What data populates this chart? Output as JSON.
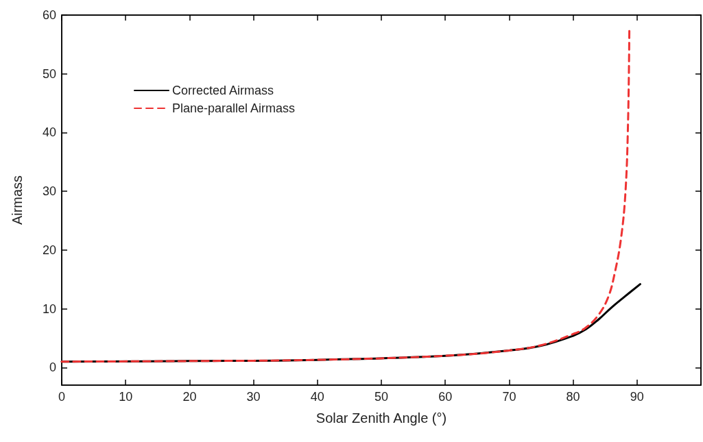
{
  "chart_data": {
    "type": "line",
    "xlabel": "Solar Zenith Angle (°)",
    "ylabel": "Airmass",
    "xlim": [
      0,
      100
    ],
    "xticks": [
      0,
      10,
      20,
      30,
      40,
      50,
      60,
      70,
      80,
      90
    ],
    "ylim": [
      -3,
      60
    ],
    "yticks": [
      0,
      10,
      20,
      30,
      40,
      50,
      60
    ],
    "grid": false,
    "legend": "top left",
    "marker": "none",
    "series": [
      {
        "name": "Corrected Airmass",
        "color": "#000000",
        "line_style": "solid",
        "x": [
          0,
          20,
          40,
          60,
          70,
          75,
          80,
          82,
          84,
          86,
          88,
          90.5
        ],
        "values": [
          1,
          1.1,
          1.3,
          2,
          2.9,
          3.7,
          5.4,
          6.5,
          8.2,
          10.2,
          12,
          14.2
        ]
      },
      {
        "name": "Plane-parallel Airmass",
        "color": "#ee3333",
        "line_style": "dashed",
        "x": [
          0,
          20,
          40,
          60,
          70,
          75,
          80,
          82,
          84,
          85.5,
          86.5,
          87.5,
          88.2,
          88.6,
          88.8
        ],
        "values": [
          1,
          1.1,
          1.3,
          2,
          2.9,
          3.8,
          5.7,
          6.8,
          9,
          12,
          16,
          22,
          30,
          42,
          57.5
        ]
      }
    ]
  }
}
